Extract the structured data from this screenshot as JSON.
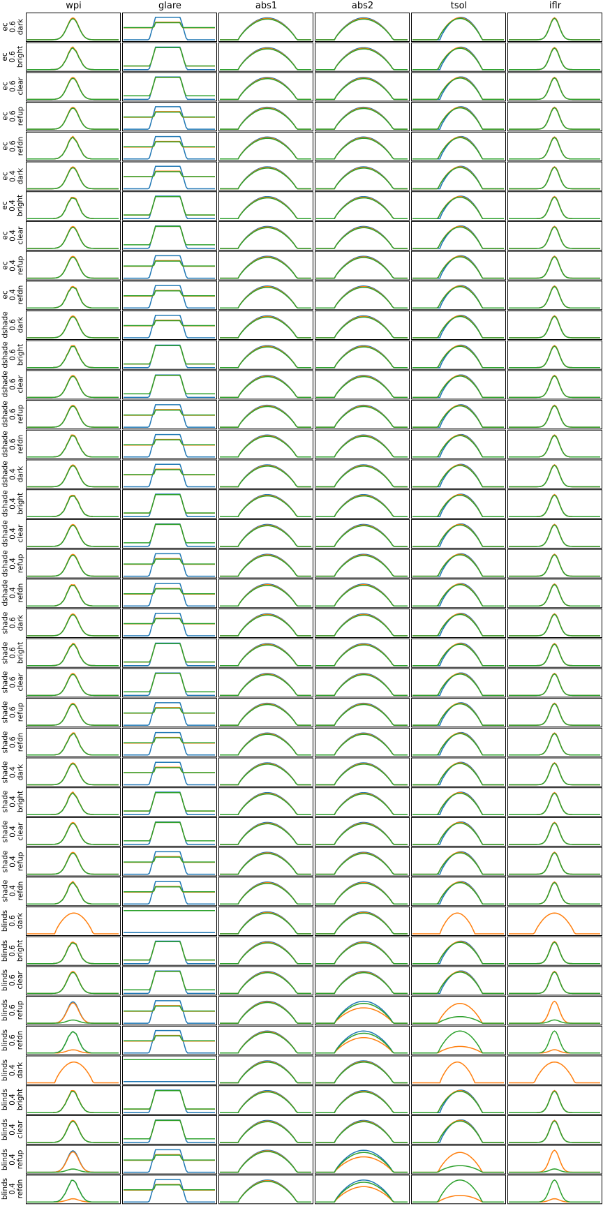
{
  "columns": [
    "wpi",
    "glare",
    "abs1",
    "abs2",
    "tsol",
    "iflr"
  ],
  "colors": {
    "blue": "#1f77b4",
    "orange": "#ff7f0e",
    "green": "#2ca02c"
  },
  "rows": [
    {
      "group": "ec",
      "value": "0.6",
      "sky": "dark"
    },
    {
      "group": "ec",
      "value": "0.6",
      "sky": "bright"
    },
    {
      "group": "ec",
      "value": "0.6",
      "sky": "clear"
    },
    {
      "group": "ec",
      "value": "0.6",
      "sky": "refup"
    },
    {
      "group": "ec",
      "value": "0.6",
      "sky": "refdn"
    },
    {
      "group": "ec",
      "value": "0.4",
      "sky": "dark"
    },
    {
      "group": "ec",
      "value": "0.4",
      "sky": "bright"
    },
    {
      "group": "ec",
      "value": "0.4",
      "sky": "clear"
    },
    {
      "group": "ec",
      "value": "0.4",
      "sky": "refup"
    },
    {
      "group": "ec",
      "value": "0.4",
      "sky": "refdn"
    },
    {
      "group": "dshade",
      "value": "0.6",
      "sky": "dark"
    },
    {
      "group": "dshade",
      "value": "0.6",
      "sky": "bright"
    },
    {
      "group": "dshade",
      "value": "0.6",
      "sky": "clear"
    },
    {
      "group": "dshade",
      "value": "0.6",
      "sky": "refup"
    },
    {
      "group": "dshade",
      "value": "0.6",
      "sky": "refdn"
    },
    {
      "group": "dshade",
      "value": "0.4",
      "sky": "dark"
    },
    {
      "group": "dshade",
      "value": "0.4",
      "sky": "bright"
    },
    {
      "group": "dshade",
      "value": "0.4",
      "sky": "clear"
    },
    {
      "group": "dshade",
      "value": "0.4",
      "sky": "refup"
    },
    {
      "group": "dshade",
      "value": "0.4",
      "sky": "refdn"
    },
    {
      "group": "shade",
      "value": "0.6",
      "sky": "dark"
    },
    {
      "group": "shade",
      "value": "0.6",
      "sky": "bright"
    },
    {
      "group": "shade",
      "value": "0.6",
      "sky": "clear"
    },
    {
      "group": "shade",
      "value": "0.6",
      "sky": "refup"
    },
    {
      "group": "shade",
      "value": "0.6",
      "sky": "refdn"
    },
    {
      "group": "shade",
      "value": "0.4",
      "sky": "dark"
    },
    {
      "group": "shade",
      "value": "0.4",
      "sky": "bright"
    },
    {
      "group": "shade",
      "value": "0.4",
      "sky": "clear"
    },
    {
      "group": "shade",
      "value": "0.4",
      "sky": "refup"
    },
    {
      "group": "shade",
      "value": "0.4",
      "sky": "refdn"
    },
    {
      "group": "blinds",
      "value": "0.6",
      "sky": "dark"
    },
    {
      "group": "blinds",
      "value": "0.6",
      "sky": "bright"
    },
    {
      "group": "blinds",
      "value": "0.6",
      "sky": "clear"
    },
    {
      "group": "blinds",
      "value": "0.6",
      "sky": "refup"
    },
    {
      "group": "blinds",
      "value": "0.6",
      "sky": "refdn"
    },
    {
      "group": "blinds",
      "value": "0.4",
      "sky": "dark"
    },
    {
      "group": "blinds",
      "value": "0.4",
      "sky": "bright"
    },
    {
      "group": "blinds",
      "value": "0.4",
      "sky": "clear"
    },
    {
      "group": "blinds",
      "value": "0.4",
      "sky": "refup"
    },
    {
      "group": "blinds",
      "value": "0.4",
      "sky": "refdn"
    }
  ],
  "chart_data": {
    "type": "line",
    "layout": "small-multiples grid, 40 rows x 6 columns",
    "axes_ticks_shown": false,
    "grid": false,
    "series": [
      {
        "color": "#1f77b4"
      },
      {
        "color": "#ff7f0e"
      },
      {
        "color": "#2ca02c"
      }
    ],
    "profiles": {
      "wpi": {
        "shape": "narrow peak",
        "range": [
          0,
          1
        ]
      },
      "glare": {
        "shape": "plateau with baseline",
        "range": [
          0,
          1
        ]
      },
      "abs1": {
        "shape": "wide arch",
        "range": [
          0,
          1
        ]
      },
      "abs2": {
        "shape": "wide arch",
        "range": [
          0,
          1
        ]
      },
      "tsol": {
        "shape": "arch",
        "range": [
          0,
          1
        ]
      },
      "iflr": {
        "shape": "sharp peak",
        "range": [
          0,
          1
        ]
      }
    }
  }
}
